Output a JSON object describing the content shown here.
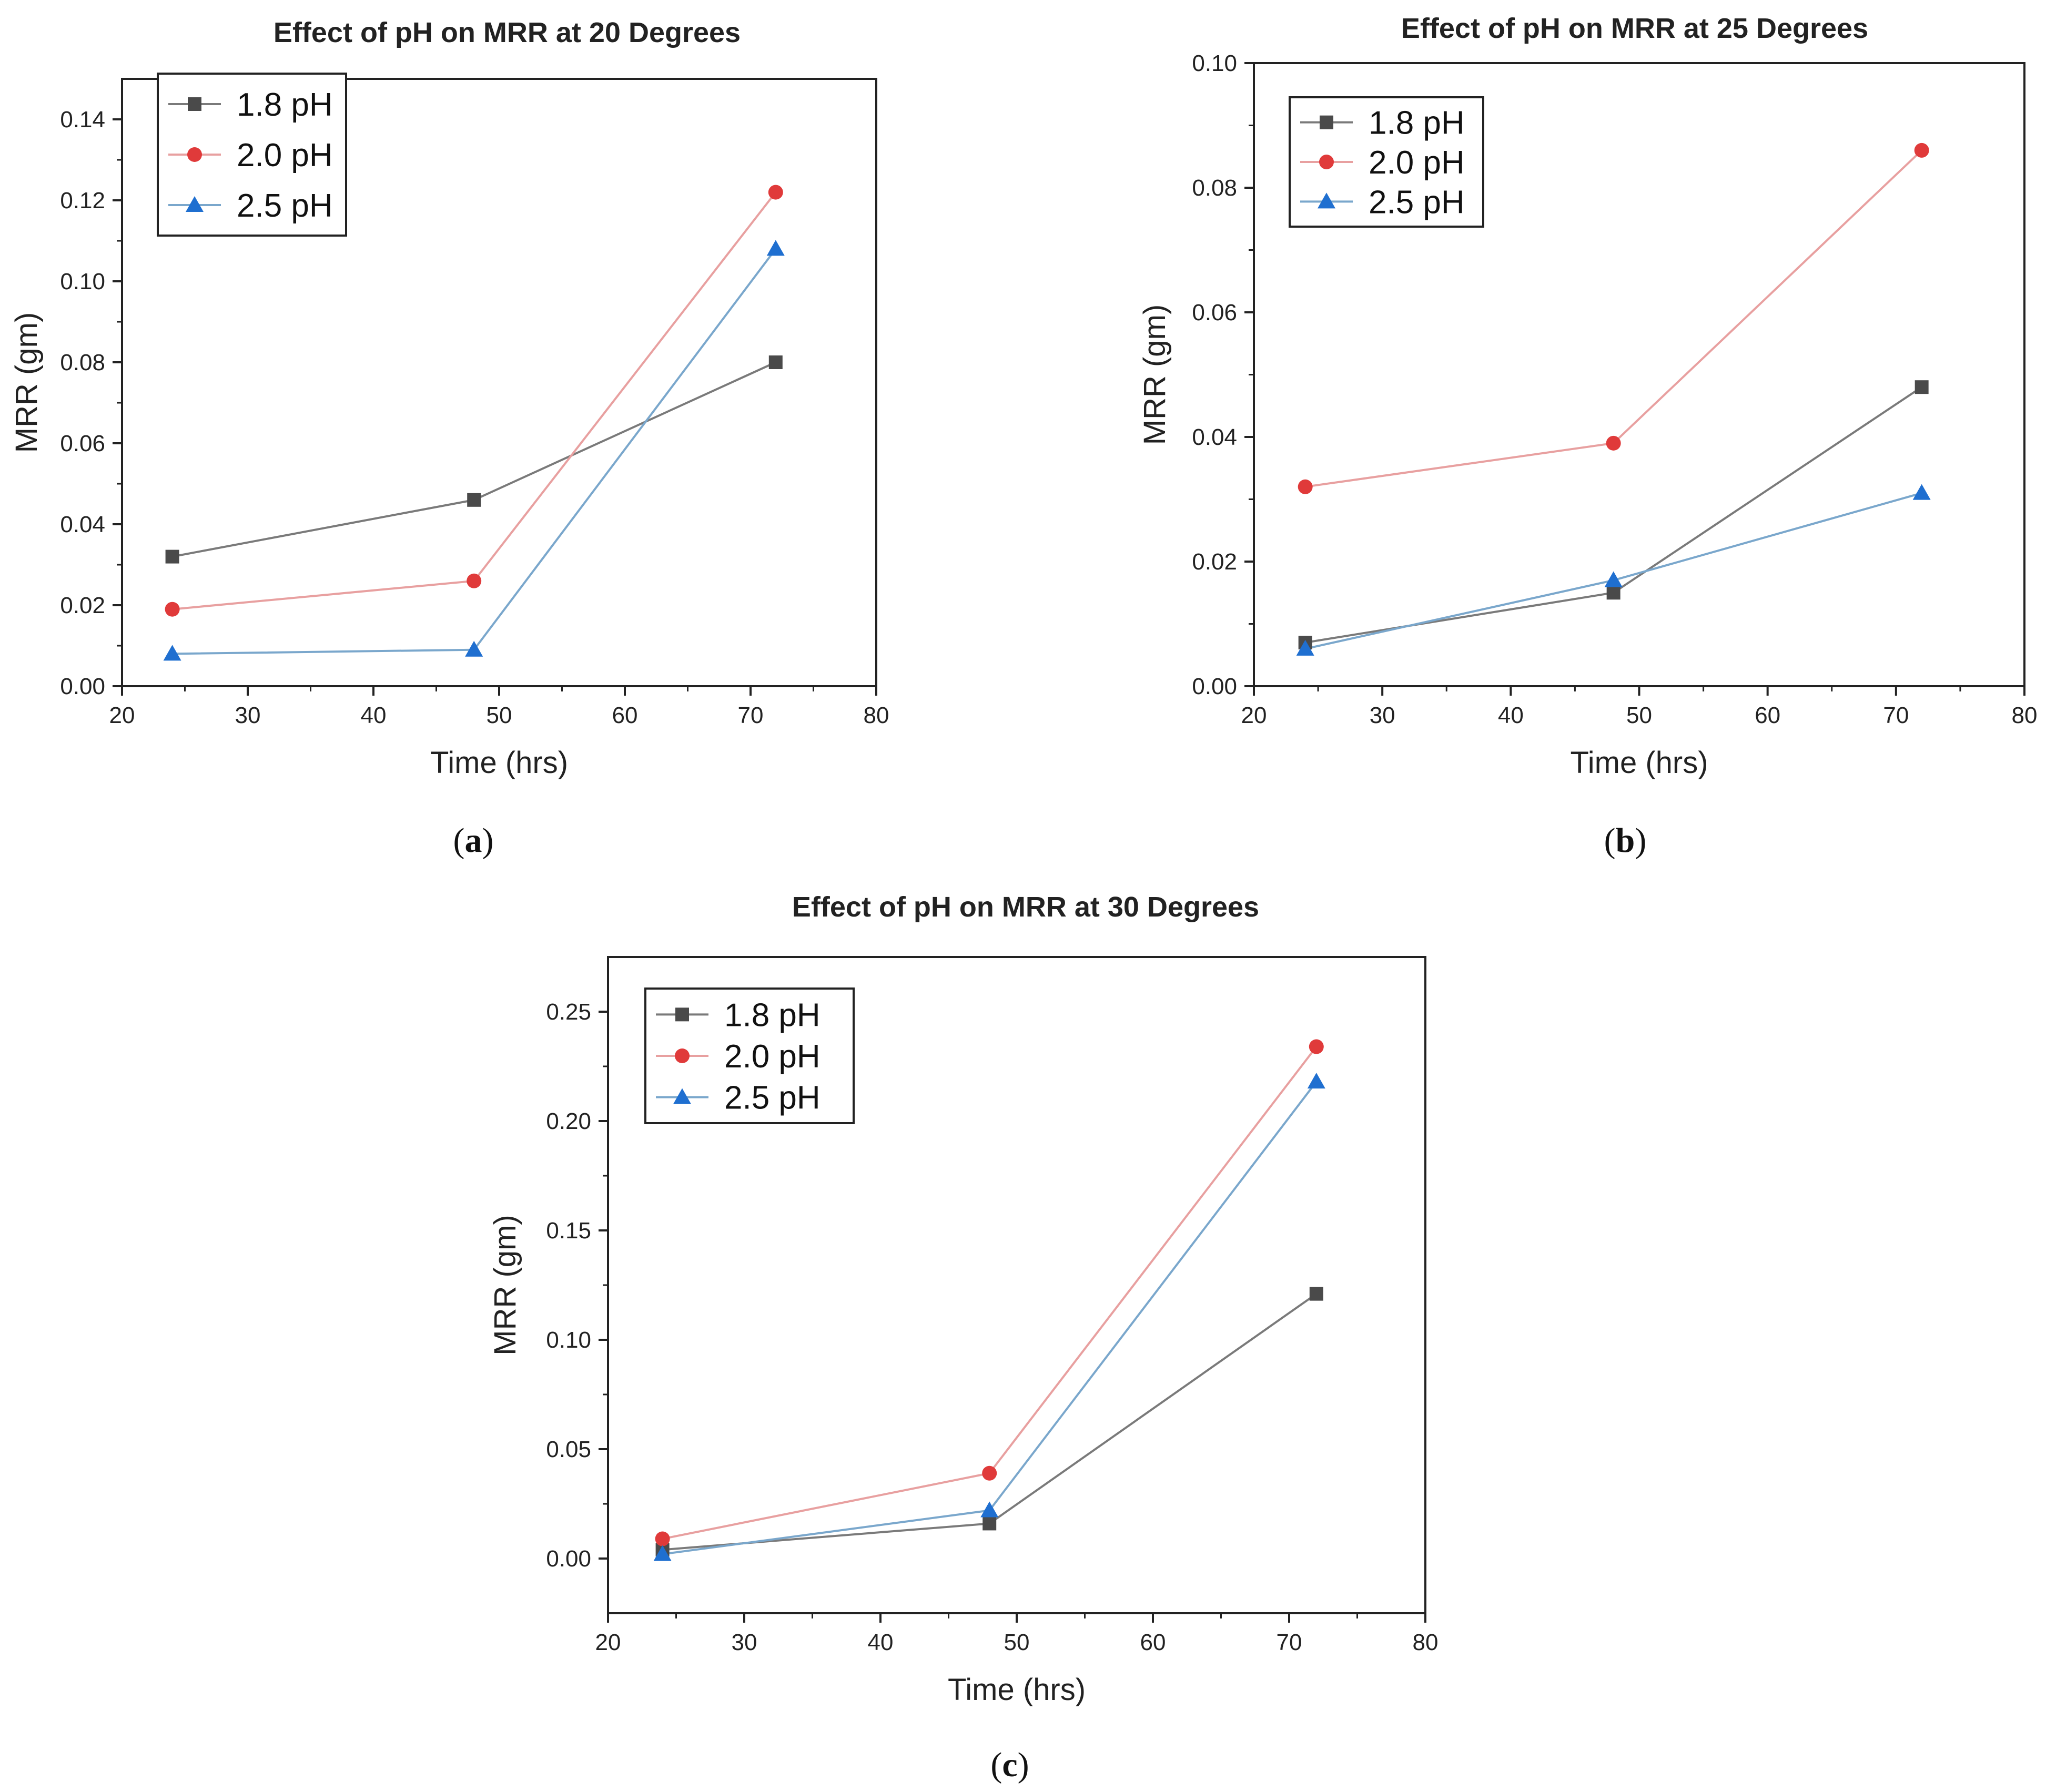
{
  "chart_data": [
    {
      "id": "a",
      "type": "line",
      "title": "Effect of pH on MRR at 20 Degrees",
      "xlabel": "Time (hrs)",
      "ylabel": "MRR (gm)",
      "xlim": [
        20,
        80
      ],
      "ylim": [
        0,
        0.15
      ],
      "xticks": [
        "20",
        "30",
        "40",
        "50",
        "60",
        "70",
        "80"
      ],
      "yticks": [
        "0.00",
        "0.02",
        "0.04",
        "0.06",
        "0.08",
        "0.10",
        "0.12",
        "0.14"
      ],
      "x": [
        24,
        48,
        72
      ],
      "series": [
        {
          "name": "1.8 pH",
          "marker": "square",
          "values": [
            0.032,
            0.046,
            0.08
          ]
        },
        {
          "name": "2.0 pH",
          "marker": "circle",
          "values": [
            0.019,
            0.026,
            0.122
          ]
        },
        {
          "name": "2.5 pH",
          "marker": "triangle",
          "values": [
            0.008,
            0.009,
            0.108
          ]
        }
      ],
      "legend": "top-left",
      "caption": "a"
    },
    {
      "id": "b",
      "type": "line",
      "title": "Effect of pH on MRR at 25 Degrees",
      "xlabel": "Time (hrs)",
      "ylabel": "MRR (gm)",
      "xlim": [
        20,
        80
      ],
      "ylim": [
        0,
        0.1
      ],
      "xticks": [
        "20",
        "30",
        "40",
        "50",
        "60",
        "70",
        "80"
      ],
      "yticks": [
        "0.00",
        "0.02",
        "0.04",
        "0.06",
        "0.08",
        "0.10"
      ],
      "x": [
        24,
        48,
        72
      ],
      "series": [
        {
          "name": "1.8 pH",
          "marker": "square",
          "values": [
            0.007,
            0.015,
            0.048
          ]
        },
        {
          "name": "2.0 pH",
          "marker": "circle",
          "values": [
            0.032,
            0.039,
            0.086
          ]
        },
        {
          "name": "2.5 pH",
          "marker": "triangle",
          "values": [
            0.006,
            0.017,
            0.031
          ]
        }
      ],
      "legend": "top-left",
      "caption": "b"
    },
    {
      "id": "c",
      "type": "line",
      "title": "Effect of pH on MRR at 30 Degrees",
      "xlabel": "Time (hrs)",
      "ylabel": "MRR (gm)",
      "xlim": [
        20,
        80
      ],
      "ylim": [
        -0.025,
        0.275
      ],
      "xticks": [
        "20",
        "30",
        "40",
        "50",
        "60",
        "70",
        "80"
      ],
      "yticks": [
        "0.00",
        "0.05",
        "0.10",
        "0.15",
        "0.20",
        "0.25"
      ],
      "x": [
        24,
        48,
        72
      ],
      "series": [
        {
          "name": "1.8 pH",
          "marker": "square",
          "values": [
            0.004,
            0.016,
            0.121
          ]
        },
        {
          "name": "2.0 pH",
          "marker": "circle",
          "values": [
            0.009,
            0.039,
            0.234
          ]
        },
        {
          "name": "2.5 pH",
          "marker": "triangle",
          "values": [
            0.002,
            0.022,
            0.218
          ]
        }
      ],
      "legend": "top-left",
      "caption": "c"
    }
  ],
  "style": {
    "series_colors": {
      "1.8 pH": {
        "marker": "#4a4a4a",
        "line": "#7a7a7a"
      },
      "2.0 pH": {
        "marker": "#e03a3a",
        "line": "#e8a0a0"
      },
      "2.5 pH": {
        "marker": "#1f6fd0",
        "line": "#7aa7cc"
      }
    },
    "axis_color": "#222222"
  }
}
